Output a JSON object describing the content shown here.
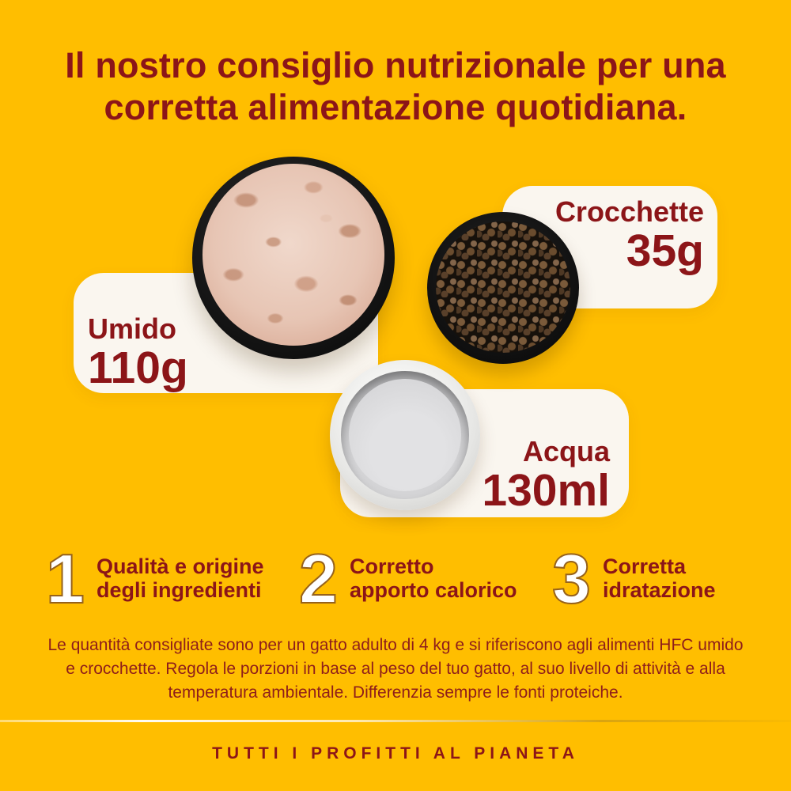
{
  "colors": {
    "background": "#FFBE00",
    "text_red": "#8C1518",
    "card_background": "#FAF6EF",
    "step_number_fill": "#FFFFFF"
  },
  "title": {
    "line1": "Il nostro consiglio nutrizionale per una",
    "line2": "corretta alimentazione quotidiana."
  },
  "portions": [
    {
      "id": "umido",
      "label": "Umido",
      "amount": "110g",
      "bowl": "wet-food-bowl"
    },
    {
      "id": "crocchette",
      "label": "Crocchette",
      "amount": "35g",
      "bowl": "kibble-bowl"
    },
    {
      "id": "acqua",
      "label": "Acqua",
      "amount": "130ml",
      "bowl": "water-bowl"
    }
  ],
  "steps": [
    {
      "number": "1",
      "line1": "Qualità e origine",
      "line2": "degli ingredienti"
    },
    {
      "number": "2",
      "line1": "Corretto",
      "line2": "apporto calorico"
    },
    {
      "number": "3",
      "line1": "Corretta",
      "line2": "idratazione"
    }
  ],
  "disclaimer": "Le quantità consigliate sono per un gatto adulto di 4 kg e si riferiscono agli alimenti HFC umido e crocchette. Regola le porzioni in base al peso del tuo gatto, al suo livello di attività e alla temperatura ambientale. Differenzia sempre le fonti proteiche.",
  "tagline": "TUTTI I PROFITTI AL PIANETA"
}
